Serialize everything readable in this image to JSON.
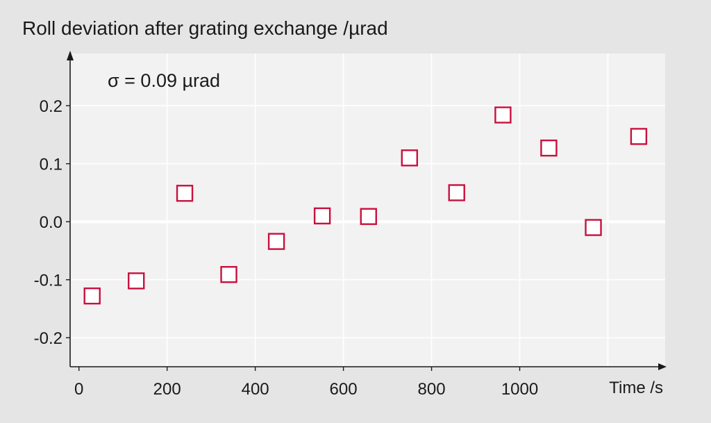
{
  "chart_data": {
    "type": "scatter",
    "title": "Roll deviation after grating exchange /µrad",
    "xlabel": "Time /s",
    "ylabel": "",
    "annotation": "σ = 0.09 µrad",
    "xlim": [
      -20,
      1330
    ],
    "ylim": [
      -0.25,
      0.29
    ],
    "xticks": [
      0,
      200,
      400,
      600,
      800,
      1000
    ],
    "xtick_labels": [
      "0",
      "200",
      "400",
      "600",
      "800",
      "1000"
    ],
    "yticks": [
      0.2,
      0.1,
      0.0,
      -0.1,
      -0.2
    ],
    "ytick_labels": [
      "0.2",
      "0.1",
      "0.0",
      "-0.1",
      "-0.2"
    ],
    "grid": true,
    "marker": "open-square",
    "colors": {
      "page": "#e5e5e5",
      "plot_area": "#f2f2f2",
      "grid": "#ffffff",
      "axis": "#1a1a1a",
      "marker": "#c8103e"
    },
    "points": [
      {
        "x": 30,
        "y": -0.128
      },
      {
        "x": 130,
        "y": -0.102
      },
      {
        "x": 240,
        "y": 0.049
      },
      {
        "x": 340,
        "y": -0.091
      },
      {
        "x": 448,
        "y": -0.034
      },
      {
        "x": 552,
        "y": 0.01
      },
      {
        "x": 657,
        "y": 0.009
      },
      {
        "x": 750,
        "y": 0.11
      },
      {
        "x": 857,
        "y": 0.05
      },
      {
        "x": 962,
        "y": 0.184
      },
      {
        "x": 1066,
        "y": 0.127
      },
      {
        "x": 1167,
        "y": -0.01
      },
      {
        "x": 1270,
        "y": 0.147
      }
    ]
  }
}
